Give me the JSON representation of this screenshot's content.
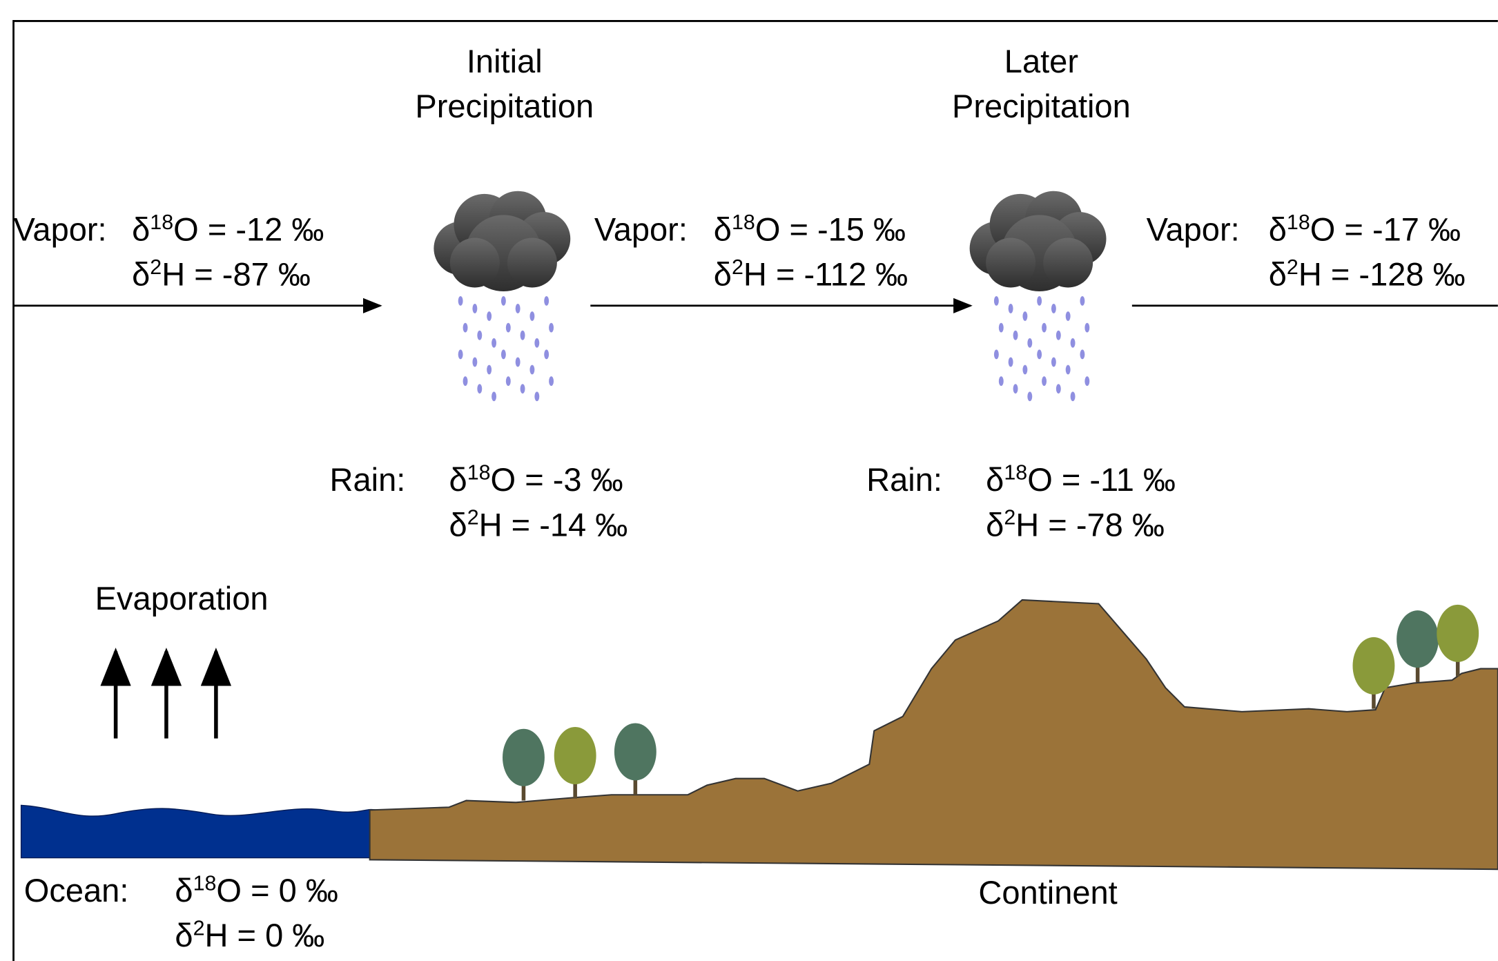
{
  "titles": [
    [
      "Initial",
      "Precipitation"
    ],
    [
      "Later",
      "Precipitation"
    ]
  ],
  "evaporation": "Evaporation",
  "continent": "Continent",
  "blocks": [
    {
      "label": "Vapor:",
      "lines": [
        {
          "pre": "δ",
          "sup": "18",
          "rest": "O = -12 ‰"
        },
        {
          "pre": "δ",
          "sup": "2",
          "rest": "H = -87 ‰"
        }
      ]
    },
    {
      "label": "Vapor:",
      "lines": [
        {
          "pre": "δ",
          "sup": "18",
          "rest": "O = -15 ‰"
        },
        {
          "pre": "δ",
          "sup": "2",
          "rest": "H = -112 ‰"
        }
      ]
    },
    {
      "label": "Vapor:",
      "lines": [
        {
          "pre": "δ",
          "sup": "18",
          "rest": "O = -17 ‰"
        },
        {
          "pre": "δ",
          "sup": "2",
          "rest": "H = -128 ‰"
        }
      ]
    },
    {
      "label": "Rain:",
      "lines": [
        {
          "pre": "δ",
          "sup": "18",
          "rest": "O = -3 ‰"
        },
        {
          "pre": "δ",
          "sup": "2",
          "rest": "H = -14 ‰"
        }
      ]
    },
    {
      "label": "Rain:",
      "lines": [
        {
          "pre": "δ",
          "sup": "18",
          "rest": "O = -11 ‰"
        },
        {
          "pre": "δ",
          "sup": "2",
          "rest": "H = -78 ‰"
        }
      ]
    },
    {
      "label": "Ocean:",
      "lines": [
        {
          "pre": "δ",
          "sup": "18",
          "rest": "O = 0 ‰"
        },
        {
          "pre": "δ",
          "sup": "2",
          "rest": "H = 0 ‰"
        }
      ]
    }
  ]
}
